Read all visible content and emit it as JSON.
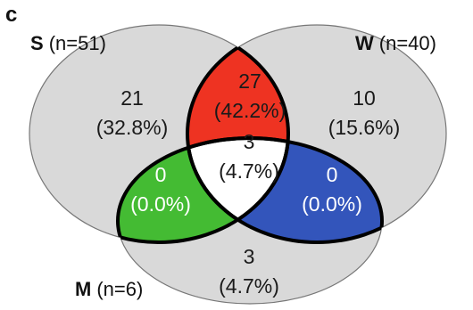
{
  "panel_label": "c",
  "sets": [
    {
      "letter": "S",
      "count_text": "(n=51)"
    },
    {
      "letter": "W",
      "count_text": "(n=40)"
    },
    {
      "letter": "M",
      "count_text": "(n=6)"
    }
  ],
  "regions": {
    "s_only": {
      "count": "21",
      "pct": "(32.8%)"
    },
    "sw": {
      "count": "27",
      "pct": "(42.2%)"
    },
    "w_only": {
      "count": "10",
      "pct": "(15.6%)"
    },
    "all": {
      "count": "3",
      "pct": "(4.7%)"
    },
    "sm": {
      "count": "0",
      "pct": "(0.0%)"
    },
    "wm": {
      "count": "0",
      "pct": "(0.0%)"
    },
    "m_only": {
      "count": "3",
      "pct": "(4.7%)"
    }
  },
  "colors": {
    "circle_fill": "#d9d9d9",
    "sw_fill": "#ee3322",
    "sm_fill": "#44bb33",
    "wm_fill": "#3355bb",
    "all_fill": "#ffffff",
    "outline": "#000000"
  }
}
